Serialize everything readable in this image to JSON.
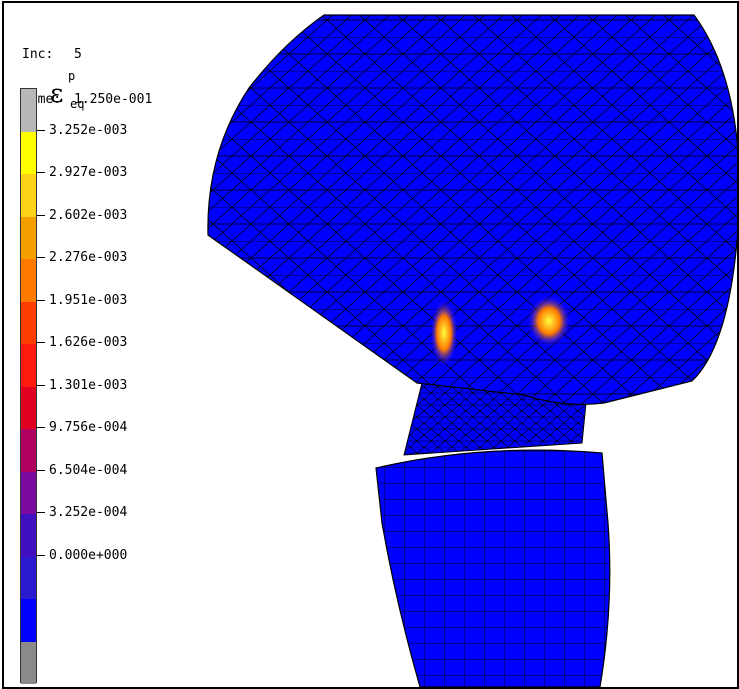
{
  "header": {
    "inc_label": "Inc:",
    "inc_value": "5",
    "time_label": "Time:",
    "time_value": "1.250e-001"
  },
  "legend": {
    "variable_symbol": "ε",
    "variable_superscript": "p",
    "variable_subscript": "eq",
    "colors": [
      "#b8b8b8",
      "#ffff00",
      "#ffd21a",
      "#f5a000",
      "#ff7a00",
      "#ff3d00",
      "#ff1a10",
      "#e00020",
      "#b00060",
      "#7a0aa0",
      "#4010c0",
      "#2a1ad0",
      "#0000ff",
      "#8a8a8a"
    ],
    "ticks": [
      "3.252e-003",
      "2.927e-003",
      "2.602e-003",
      "2.276e-003",
      "1.951e-003",
      "1.626e-003",
      "1.301e-003",
      "9.756e-004",
      "6.504e-004",
      "3.252e-004",
      "0.000e+000"
    ]
  },
  "model": {
    "base_color": "#0000ff",
    "mesh_color": "#000000",
    "hot_color": "#ffd21a"
  }
}
